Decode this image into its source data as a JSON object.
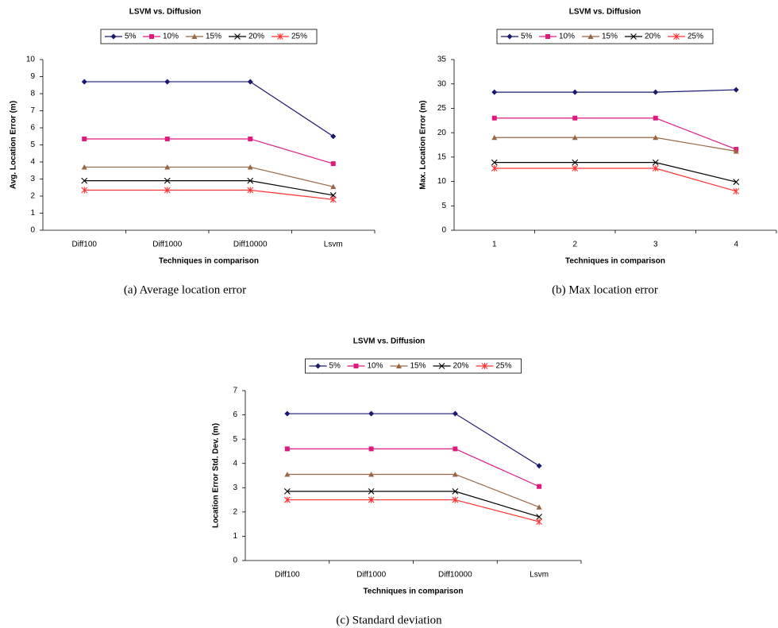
{
  "chart_data": [
    {
      "type": "line",
      "title": "LSVM vs. Diffusion",
      "x_label": "Techniques in comparison",
      "y_label": "Avg. Location Error (m)",
      "caption": "(a)  Average location error",
      "categories": [
        "Diff100",
        "Diff1000",
        "Diff10000",
        "Lsvm"
      ],
      "ylim": [
        0,
        10
      ],
      "yticks": [
        0,
        1,
        2,
        3,
        4,
        5,
        6,
        7,
        8,
        9,
        10
      ],
      "legend": "top",
      "grid": false,
      "series": [
        {
          "name": "5%",
          "color": "#1a1a70",
          "marker": "diamond",
          "values": [
            8.7,
            8.7,
            8.7,
            5.5
          ]
        },
        {
          "name": "10%",
          "color": "#e0197f",
          "marker": "square",
          "values": [
            5.35,
            5.35,
            5.35,
            3.9
          ]
        },
        {
          "name": "15%",
          "color": "#996644",
          "marker": "triangle",
          "values": [
            3.7,
            3.7,
            3.7,
            2.55
          ]
        },
        {
          "name": "20%",
          "color": "#000000",
          "marker": "x",
          "values": [
            2.9,
            2.9,
            2.9,
            2.05
          ]
        },
        {
          "name": "25%",
          "color": "#ff3030",
          "marker": "asterisk",
          "values": [
            2.35,
            2.35,
            2.35,
            1.8
          ]
        }
      ]
    },
    {
      "type": "line",
      "title": "LSVM vs. Diffusion",
      "x_label": "Techniques in comparison",
      "y_label": "Max. Location Error (m)",
      "caption": "(b)  Max location error",
      "categories": [
        "1",
        "2",
        "3",
        "4"
      ],
      "ylim": [
        0,
        35
      ],
      "yticks": [
        0,
        5,
        10,
        15,
        20,
        25,
        30,
        35
      ],
      "legend": "top",
      "grid": false,
      "series": [
        {
          "name": "5%",
          "color": "#1a1a70",
          "marker": "diamond",
          "values": [
            28.3,
            28.3,
            28.3,
            28.8
          ]
        },
        {
          "name": "10%",
          "color": "#e0197f",
          "marker": "square",
          "values": [
            23,
            23,
            23,
            16.6
          ]
        },
        {
          "name": "15%",
          "color": "#996644",
          "marker": "triangle",
          "values": [
            19,
            19,
            19,
            16.2
          ]
        },
        {
          "name": "20%",
          "color": "#000000",
          "marker": "x",
          "values": [
            13.9,
            13.9,
            13.9,
            9.9
          ]
        },
        {
          "name": "25%",
          "color": "#ff3030",
          "marker": "asterisk",
          "values": [
            12.7,
            12.7,
            12.7,
            8.0
          ]
        }
      ]
    },
    {
      "type": "line",
      "title": "LSVM vs. Diffusion",
      "x_label": "Techniques in comparison",
      "y_label": "Location Error Std. Dev. (m)",
      "caption": "(c)  Standard deviation",
      "categories": [
        "Diff100",
        "Diff1000",
        "Diff10000",
        "Lsvm"
      ],
      "ylim": [
        0,
        7
      ],
      "yticks": [
        0,
        1,
        2,
        3,
        4,
        5,
        6,
        7
      ],
      "legend": "top",
      "grid": false,
      "series": [
        {
          "name": "5%",
          "color": "#1a1a70",
          "marker": "diamond",
          "values": [
            6.05,
            6.05,
            6.05,
            3.9
          ]
        },
        {
          "name": "10%",
          "color": "#e0197f",
          "marker": "square",
          "values": [
            4.6,
            4.6,
            4.6,
            3.05
          ]
        },
        {
          "name": "15%",
          "color": "#996644",
          "marker": "triangle",
          "values": [
            3.55,
            3.55,
            3.55,
            2.2
          ]
        },
        {
          "name": "20%",
          "color": "#000000",
          "marker": "x",
          "values": [
            2.85,
            2.85,
            2.85,
            1.8
          ]
        },
        {
          "name": "25%",
          "color": "#ff3030",
          "marker": "asterisk",
          "values": [
            2.5,
            2.5,
            2.5,
            1.6
          ]
        }
      ]
    }
  ]
}
